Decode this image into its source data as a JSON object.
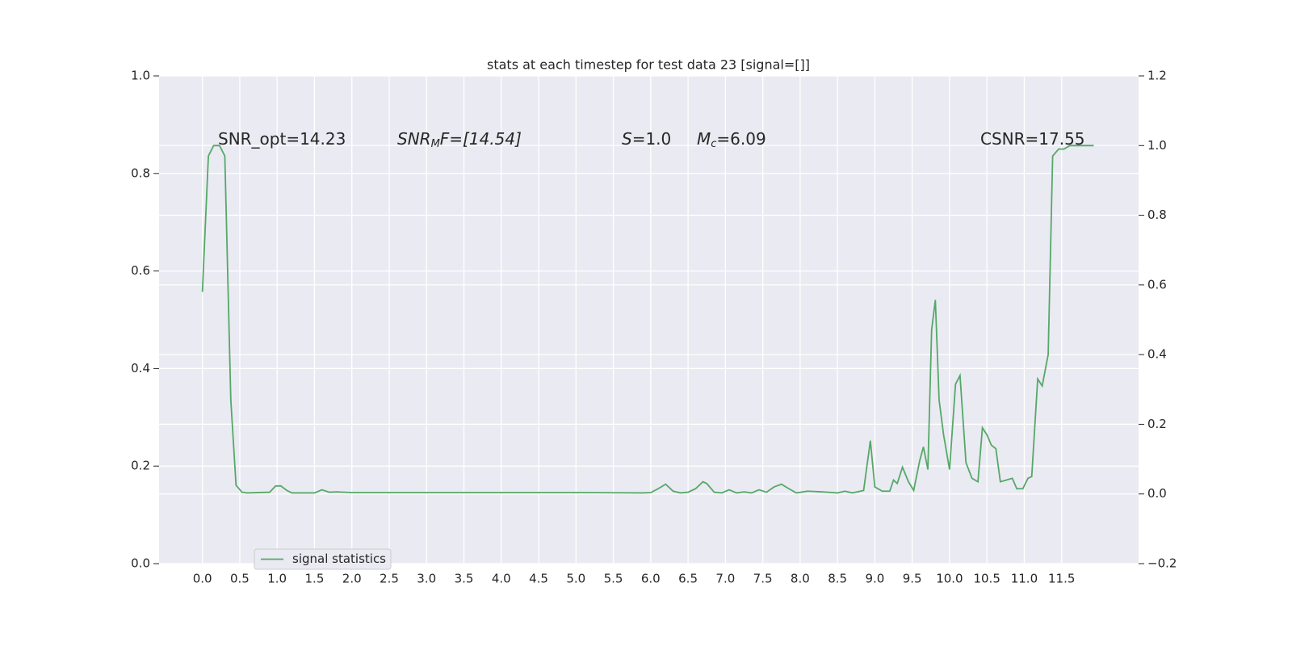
{
  "chart_data": {
    "type": "line",
    "title": "stats at each timestep for test data 23 [signal=[]]",
    "annotations": [
      [
        "SNR_opt=14.23"
      ],
      [
        "SNR",
        "M",
        "F=[14.54]"
      ],
      [
        "S",
        "=1.0"
      ],
      [
        "M",
        "c",
        "=6.09"
      ],
      [
        "CSNR=17.55"
      ]
    ],
    "x": [
      0,
      0.08,
      0.15,
      0.23,
      0.3,
      0.38,
      0.45,
      0.53,
      0.6,
      0.9,
      0.98,
      1.05,
      1.13,
      1.2,
      1.5,
      1.6,
      1.7,
      1.8,
      2.0,
      3.0,
      4.0,
      5.0,
      5.9,
      6.0,
      6.1,
      6.2,
      6.3,
      6.4,
      6.5,
      6.6,
      6.7,
      6.75,
      6.85,
      6.95,
      7.05,
      7.15,
      7.25,
      7.35,
      7.45,
      7.55,
      7.65,
      7.75,
      7.85,
      7.95,
      8.1,
      8.3,
      8.5,
      8.6,
      8.7,
      8.85,
      8.94,
      9.0,
      9.1,
      9.2,
      9.25,
      9.3,
      9.37,
      9.45,
      9.52,
      9.6,
      9.65,
      9.71,
      9.76,
      9.81,
      9.86,
      9.92,
      10.0,
      10.08,
      10.14,
      10.22,
      10.3,
      10.38,
      10.44,
      10.5,
      10.56,
      10.62,
      10.68,
      10.76,
      10.84,
      10.9,
      10.98,
      11.05,
      11.1,
      11.18,
      11.24,
      11.32,
      11.38,
      11.46,
      11.53,
      11.61,
      11.93
    ],
    "series": [
      {
        "name": "signal statistics",
        "color": "#55a868",
        "axis": "y2",
        "values": [
          0.58,
          0.97,
          1.0,
          1.0,
          0.97,
          0.27,
          0.025,
          0.005,
          0.003,
          0.005,
          0.023,
          0.023,
          0.01,
          0.003,
          0.003,
          0.012,
          0.005,
          0.006,
          0.004,
          0.004,
          0.004,
          0.004,
          0.003,
          0.004,
          0.015,
          0.028,
          0.008,
          0.003,
          0.005,
          0.015,
          0.035,
          0.03,
          0.005,
          0.003,
          0.012,
          0.003,
          0.006,
          0.003,
          0.012,
          0.005,
          0.02,
          0.028,
          0.015,
          0.003,
          0.008,
          0.006,
          0.003,
          0.008,
          0.003,
          0.01,
          0.153,
          0.02,
          0.008,
          0.008,
          0.04,
          0.03,
          0.077,
          0.035,
          0.01,
          0.095,
          0.135,
          0.07,
          0.47,
          0.557,
          0.27,
          0.17,
          0.07,
          0.315,
          0.34,
          0.09,
          0.045,
          0.035,
          0.19,
          0.17,
          0.14,
          0.13,
          0.035,
          0.04,
          0.045,
          0.015,
          0.015,
          0.045,
          0.05,
          0.33,
          0.31,
          0.4,
          0.97,
          0.99,
          0.99,
          1.0,
          1.0
        ]
      }
    ],
    "xlim": [
      -0.58,
      12.53
    ],
    "xticks": [
      {
        "value": 0,
        "label": "0.0"
      },
      0.5,
      {
        "value": 1,
        "label": "1.0"
      },
      1.5,
      {
        "value": 2,
        "label": "2.0"
      },
      2.5,
      {
        "value": 3,
        "label": "3.0"
      },
      3.5,
      {
        "value": 4,
        "label": "4.0"
      },
      4.5,
      {
        "value": 5,
        "label": "5.0"
      },
      5.5,
      {
        "value": 6,
        "label": "6.0"
      },
      6.5,
      {
        "value": 7,
        "label": "7.0"
      },
      7.5,
      {
        "value": 8,
        "label": "8.0"
      },
      8.5,
      {
        "value": 9,
        "label": "9.0"
      },
      9.5,
      {
        "value": 10,
        "label": "10.0"
      },
      10.5,
      {
        "value": 11,
        "label": "11.0"
      },
      11.5
    ],
    "ylim": [
      0,
      1
    ],
    "yticks": [
      {
        "value": 0,
        "label": "0.0"
      },
      0.2,
      0.4,
      0.6,
      0.8,
      {
        "value": 1,
        "label": "1.0"
      }
    ],
    "y2lim": [
      -0.2,
      1.2
    ],
    "y2ticks": [
      {
        "value": -0.2,
        "label": "−0.2"
      },
      {
        "value": 0,
        "label": "0.0"
      },
      0.2,
      0.4,
      0.6,
      0.8,
      {
        "value": 1,
        "label": "1.0"
      },
      1.2
    ],
    "grid": true,
    "legend": "lower left"
  }
}
